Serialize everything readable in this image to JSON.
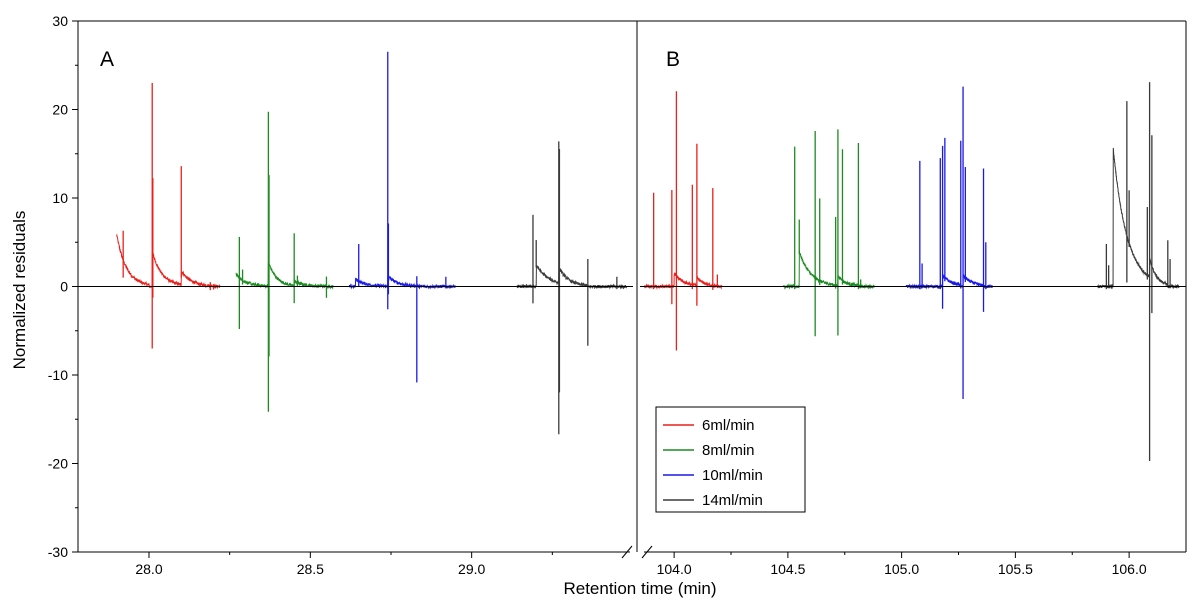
{
  "chart_data": {
    "type": "line",
    "xlabel": "Retention time (min)",
    "ylabel": "Normalized residuals",
    "ylim": [
      -30,
      30
    ],
    "y_ticks": [
      -30,
      -20,
      -10,
      0,
      10,
      20,
      30
    ],
    "axis_break": true,
    "legend_placement": "bottom-center",
    "panels": [
      {
        "label": "A",
        "xlim": [
          27.78,
          29.5
        ],
        "x_ticks": [
          28.0,
          28.5,
          29.0
        ],
        "x_tick_labels": [
          "28.0",
          "28.5",
          "29.0"
        ]
      },
      {
        "label": "B",
        "xlim": [
          103.85,
          106.25
        ],
        "x_ticks": [
          104.0,
          104.5,
          105.0,
          105.5,
          106.0
        ],
        "x_tick_labels": [
          "104.0",
          "104.5",
          "105.0",
          "105.5",
          "106.0"
        ]
      }
    ],
    "series": [
      {
        "name": "6ml/min",
        "color": "#e8211c",
        "panelA": {
          "range": [
            27.9,
            28.22
          ],
          "spikes": [
            [
              27.92,
              3.3,
              -2.0
            ],
            [
              28.01,
              19.0,
              -11.0
            ],
            [
              28.012,
              8.5,
              -5.0
            ],
            [
              28.1,
              11.6,
              -1.0
            ],
            [
              28.19,
              0.4,
              -0.5
            ],
            [
              28.2,
              0.2,
              -0.4
            ]
          ],
          "bumps": [
            [
              27.92,
              3.0,
              0.03,
              27.9,
              28.0
            ],
            [
              28.01,
              4.0,
              0.03,
              28.01,
              28.1
            ],
            [
              28.1,
              1.8,
              0.03,
              28.1,
              28.2
            ]
          ]
        },
        "panelB": {
          "range": [
            103.87,
            104.21
          ],
          "spikes": [
            [
              103.91,
              10.6,
              -0.3
            ],
            [
              103.99,
              10.9,
              -2.0
            ],
            [
              104.01,
              20.9,
              -8.4
            ],
            [
              104.08,
              11.3,
              -0.5
            ],
            [
              104.1,
              15.0,
              -3.3
            ],
            [
              104.17,
              11.0,
              -0.5
            ],
            [
              104.19,
              1.3,
              -0.2
            ]
          ],
          "bumps": [
            [
              104.0,
              1.5,
              0.04,
              104.0,
              104.17
            ],
            [
              104.1,
              1.0,
              0.03,
              104.1,
              104.19
            ]
          ]
        }
      },
      {
        "name": "8ml/min",
        "color": "#1e8a22",
        "panelA": {
          "range": [
            28.27,
            28.57
          ],
          "spikes": [
            [
              28.28,
              4.6,
              -5.8
            ],
            [
              28.29,
              1.2,
              -0.5
            ],
            [
              28.37,
              16.9,
              -17.0
            ],
            [
              28.372,
              10.0,
              -10.5
            ],
            [
              28.45,
              5.3,
              -2.6
            ],
            [
              28.46,
              0.8,
              -0.4
            ],
            [
              28.55,
              1.1,
              -1.3
            ]
          ],
          "bumps": [
            [
              28.28,
              1.0,
              0.03,
              28.27,
              28.37
            ],
            [
              28.37,
              2.8,
              0.025,
              28.37,
              28.45
            ],
            [
              28.45,
              0.6,
              0.03,
              28.45,
              28.55
            ]
          ]
        },
        "panelB": {
          "range": [
            104.48,
            104.88
          ],
          "spikes": [
            [
              104.53,
              15.8,
              -0.3
            ],
            [
              104.55,
              3.6,
              -0.3
            ],
            [
              104.62,
              16.6,
              -6.6
            ],
            [
              104.64,
              9.3,
              -0.5
            ],
            [
              104.71,
              7.7,
              -0.4
            ],
            [
              104.72,
              16.6,
              -6.7
            ],
            [
              104.74,
              14.8,
              -0.5
            ],
            [
              104.81,
              16.1,
              -0.4
            ],
            [
              104.82,
              0.8,
              -0.2
            ]
          ],
          "bumps": [
            [
              104.63,
              0.8,
              0.05,
              104.55,
              104.74
            ],
            [
              104.73,
              0.8,
              0.04,
              104.72,
              104.81
            ]
          ]
        }
      },
      {
        "name": "10ml/min",
        "color": "#1a1ae6",
        "panelA": {
          "range": [
            28.62,
            28.95
          ],
          "spikes": [
            [
              28.65,
              4.2,
              -0.6
            ],
            [
              28.74,
              25.3,
              -3.8
            ],
            [
              28.742,
              6.0,
              -2.0
            ],
            [
              28.83,
              1.1,
              -10.9
            ],
            [
              28.92,
              1.1,
              -0.2
            ]
          ],
          "bumps": [
            [
              28.65,
              0.6,
              0.03,
              28.64,
              28.74
            ],
            [
              28.74,
              1.2,
              0.03,
              28.74,
              28.83
            ]
          ]
        },
        "panelB": {
          "range": [
            105.02,
            105.4
          ],
          "spikes": [
            [
              105.08,
              14.2,
              -0.3
            ],
            [
              105.09,
              2.6,
              -0.2
            ],
            [
              105.17,
              14.5,
              -0.3
            ],
            [
              105.18,
              14.6,
              -3.8
            ],
            [
              105.19,
              15.8,
              -0.4
            ],
            [
              105.26,
              16.3,
              -0.4
            ],
            [
              105.27,
              21.3,
              -14.0
            ],
            [
              105.28,
              12.5,
              -0.5
            ],
            [
              105.36,
              13.2,
              -3.0
            ],
            [
              105.37,
              5.0,
              -0.3
            ]
          ],
          "bumps": [
            [
              105.19,
              1.0,
              0.04,
              105.18,
              105.26
            ],
            [
              105.28,
              1.0,
              0.04,
              105.27,
              105.36
            ]
          ]
        }
      },
      {
        "name": "14ml/min",
        "color": "#3a3a3a",
        "panelA": {
          "range": [
            29.14,
            29.48
          ],
          "spikes": [
            [
              29.19,
              8.1,
              -1.9
            ],
            [
              29.2,
              2.8,
              -0.3
            ],
            [
              29.27,
              13.8,
              -19.3
            ],
            [
              29.272,
              13.5,
              -14.0
            ],
            [
              29.36,
              3.0,
              -6.8
            ],
            [
              29.45,
              1.1,
              -0.3
            ]
          ],
          "bumps": [
            [
              29.24,
              0.9,
              0.04,
              29.2,
              29.27
            ],
            [
              29.3,
              0.8,
              0.03,
              29.27,
              29.36
            ]
          ]
        },
        "panelB": {
          "range": [
            105.86,
            106.22
          ],
          "spikes": [
            [
              105.9,
              4.8,
              -0.3
            ],
            [
              105.91,
              2.4,
              -0.2
            ],
            [
              105.99,
              15.2,
              -5.3
            ],
            [
              106.0,
              6.0,
              -0.4
            ],
            [
              106.08,
              7.7,
              -0.5
            ],
            [
              106.09,
              18.8,
              -24.0
            ],
            [
              106.1,
              14.8,
              -5.3
            ],
            [
              106.17,
              5.0,
              -0.3
            ],
            [
              106.18,
              3.1,
              -0.2
            ]
          ],
          "bumps": [
            [
              106.04,
              2.5,
              0.06,
              105.93,
              106.09
            ],
            [
              106.09,
              3.2,
              0.03,
              106.09,
              106.17
            ]
          ]
        }
      }
    ]
  }
}
